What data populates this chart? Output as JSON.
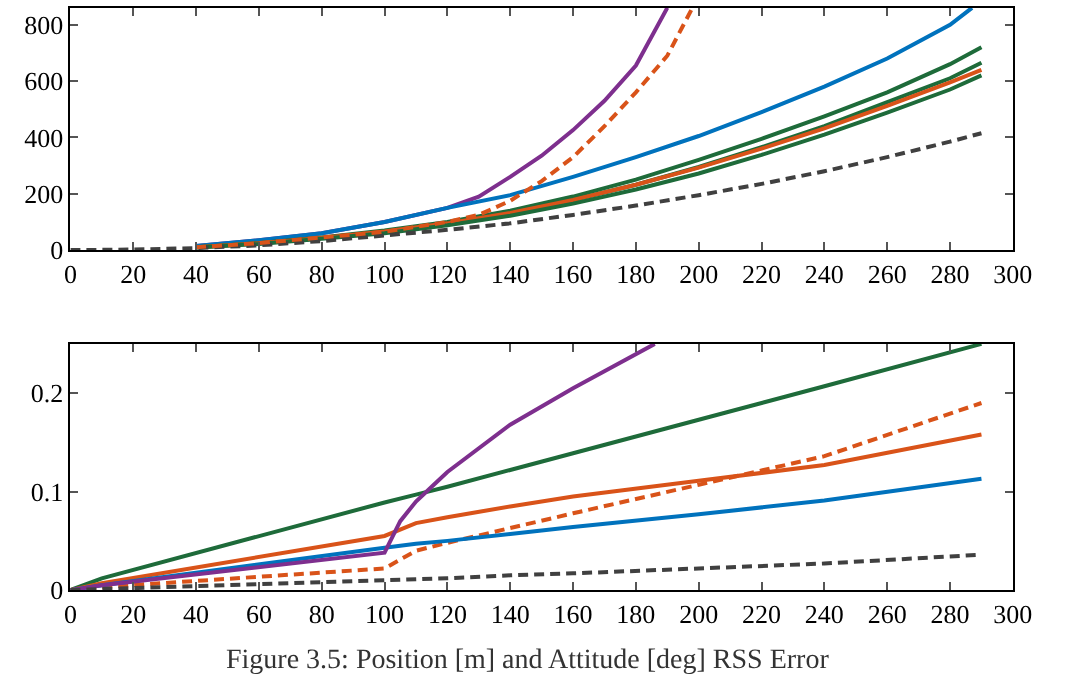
{
  "chart_data": [
    {
      "type": "line",
      "x": [
        40,
        60,
        80,
        100,
        120,
        140,
        160,
        180,
        200,
        220,
        240,
        260,
        280,
        290
      ],
      "xlim": [
        0,
        300
      ],
      "xticks": [
        0,
        20,
        40,
        60,
        80,
        100,
        120,
        140,
        160,
        180,
        200,
        220,
        240,
        260,
        280,
        300
      ],
      "ylim": [
        0,
        860
      ],
      "yticks": [
        0,
        200,
        400,
        600,
        800
      ],
      "line_style": "solid",
      "series": [
        {
          "color": "#7e2f8e",
          "x": [
            40,
            60,
            80,
            100,
            120,
            130,
            140,
            150,
            160,
            170,
            180,
            190
          ],
          "values": [
            15,
            35,
            60,
            100,
            150,
            190,
            260,
            335,
            426,
            530,
            655,
            860
          ]
        },
        {
          "color": "#0072bd",
          "x": [
            40,
            60,
            80,
            100,
            120,
            140,
            160,
            180,
            200,
            220,
            240,
            260,
            280,
            287
          ],
          "values": [
            15,
            35,
            60,
            100,
            150,
            195,
            260,
            330,
            405,
            490,
            580,
            680,
            800,
            860
          ]
        },
        {
          "color": "#1e6b3a",
          "values": [
            10,
            25,
            45,
            70,
            100,
            140,
            190,
            250,
            320,
            395,
            475,
            560,
            660,
            720
          ]
        },
        {
          "color": "#1e6b3a",
          "values": [
            10,
            24,
            43,
            66,
            95,
            132,
            178,
            232,
            295,
            365,
            440,
            525,
            610,
            665
          ]
        },
        {
          "color": "#d95319",
          "values": [
            10,
            24,
            43,
            66,
            95,
            132,
            178,
            232,
            293,
            360,
            432,
            512,
            595,
            640
          ]
        },
        {
          "color": "#1e6b3a",
          "values": [
            9,
            22,
            40,
            60,
            88,
            122,
            165,
            215,
            272,
            338,
            410,
            488,
            570,
            620
          ]
        },
        {
          "color": "#404040",
          "line_style": "dashed",
          "x": [
            0,
            20,
            40,
            60,
            80,
            100,
            120,
            140,
            160,
            180,
            200,
            220,
            240,
            260,
            280,
            290
          ],
          "values": [
            0,
            2,
            7,
            17,
            32,
            52,
            72,
            95,
            125,
            158,
            195,
            235,
            280,
            330,
            385,
            415
          ]
        },
        {
          "color": "#d95319",
          "line_style": "dashed",
          "x": [
            40,
            60,
            80,
            100,
            120,
            130,
            140,
            150,
            160,
            170,
            180,
            190,
            198
          ],
          "values": [
            10,
            25,
            45,
            65,
            100,
            125,
            175,
            245,
            330,
            440,
            560,
            690,
            860
          ]
        }
      ]
    },
    {
      "type": "line",
      "x": [
        0,
        10,
        100,
        110,
        120,
        140,
        160,
        200,
        240,
        290
      ],
      "xlim": [
        0,
        300
      ],
      "xticks": [
        0,
        20,
        40,
        60,
        80,
        100,
        120,
        140,
        160,
        180,
        200,
        220,
        240,
        260,
        280,
        300
      ],
      "ylim": [
        0,
        0.25
      ],
      "yticks": [
        0,
        0.1,
        0.2
      ],
      "line_style": "solid",
      "annotations": [
        "Figure 3.5: Position [m] and Attitude [deg] RSS Error"
      ],
      "series": [
        {
          "color": "#1e6b3a",
          "values": [
            0,
            0.012,
            0.089,
            0.097,
            0.105,
            0.122,
            0.139,
            0.173,
            0.207,
            0.25
          ]
        },
        {
          "color": "#d95319",
          "line_style": "dashed",
          "values": [
            0,
            0.003,
            0.022,
            0.04,
            0.048,
            0.063,
            0.078,
            0.107,
            0.136,
            0.19
          ]
        },
        {
          "color": "#d95319",
          "values": [
            0,
            0.007,
            0.055,
            0.068,
            0.074,
            0.085,
            0.095,
            0.111,
            0.127,
            0.158
          ]
        },
        {
          "color": "#0072bd",
          "values": [
            0,
            0.005,
            0.043,
            0.047,
            0.05,
            0.057,
            0.064,
            0.077,
            0.091,
            0.113
          ]
        },
        {
          "color": "#7e2f8e",
          "x": [
            0,
            10,
            100,
            105,
            110,
            115,
            120,
            140,
            160,
            186
          ],
          "values": [
            0,
            0.005,
            0.038,
            0.07,
            0.09,
            0.105,
            0.12,
            0.168,
            0.205,
            0.25
          ]
        },
        {
          "color": "#404040",
          "line_style": "dashed",
          "values": [
            0,
            0.001,
            0.01,
            0.011,
            0.012,
            0.015,
            0.017,
            0.022,
            0.027,
            0.036
          ]
        }
      ]
    }
  ]
}
